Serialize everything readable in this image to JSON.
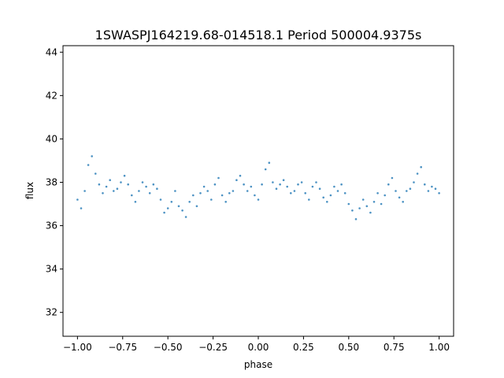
{
  "chart_data": {
    "type": "scatter",
    "title": "1SWASPJ164219.68-014518.1 Period 500004.9375s",
    "xlabel": "phase",
    "ylabel": "flux",
    "xlim": [
      -1.08,
      1.08
    ],
    "ylim": [
      30.9,
      44.3
    ],
    "xticks": [
      {
        "value": -1.0,
        "label": "−1.00"
      },
      {
        "value": -0.75,
        "label": "−0.75"
      },
      {
        "value": -0.5,
        "label": "−0.50"
      },
      {
        "value": -0.25,
        "label": "−0.25"
      },
      {
        "value": 0.0,
        "label": "0.00"
      },
      {
        "value": 0.25,
        "label": "0.25"
      },
      {
        "value": 0.5,
        "label": "0.50"
      },
      {
        "value": 0.75,
        "label": "0.75"
      },
      {
        "value": 1.0,
        "label": "1.00"
      }
    ],
    "yticks": [
      {
        "value": 32,
        "label": "32"
      },
      {
        "value": 34,
        "label": "34"
      },
      {
        "value": 36,
        "label": "36"
      },
      {
        "value": 38,
        "label": "38"
      },
      {
        "value": 40,
        "label": "40"
      },
      {
        "value": 42,
        "label": "42"
      },
      {
        "value": 44,
        "label": "44"
      }
    ],
    "grid": false,
    "marker_color": "#1f77b4",
    "series": [
      {
        "x": [
          -1.0,
          -0.98,
          -0.96,
          -0.94,
          -0.92,
          -0.9,
          -0.88,
          -0.86,
          -0.84,
          -0.82,
          -0.8,
          -0.78,
          -0.76,
          -0.74,
          -0.72,
          -0.7,
          -0.68,
          -0.66,
          -0.64,
          -0.62,
          -0.6,
          -0.58,
          -0.56,
          -0.54,
          -0.52,
          -0.5,
          -0.48,
          -0.46,
          -0.44,
          -0.42,
          -0.4,
          -0.38,
          -0.36,
          -0.34,
          -0.32,
          -0.3,
          -0.28,
          -0.26,
          -0.24,
          -0.22,
          -0.2,
          -0.18,
          -0.16,
          -0.14,
          -0.12,
          -0.1,
          -0.08,
          -0.06,
          -0.04,
          -0.02,
          0.0,
          0.02,
          0.04,
          0.06,
          0.08,
          0.1,
          0.12,
          0.14,
          0.16,
          0.18,
          0.2,
          0.22,
          0.24,
          0.26,
          0.28,
          0.3,
          0.32,
          0.34,
          0.36,
          0.38,
          0.4,
          0.42,
          0.44,
          0.46,
          0.48,
          0.5,
          0.52,
          0.54,
          0.56,
          0.58,
          0.6,
          0.62,
          0.64,
          0.66,
          0.68,
          0.7,
          0.72,
          0.74,
          0.76,
          0.78,
          0.8,
          0.82,
          0.84,
          0.86,
          0.88,
          0.9,
          0.92,
          0.94,
          0.96,
          0.98,
          1.0
        ],
        "y": [
          37.2,
          36.8,
          37.6,
          38.8,
          39.2,
          38.4,
          37.9,
          37.5,
          37.8,
          38.1,
          37.6,
          37.7,
          38.0,
          38.3,
          37.9,
          37.4,
          37.1,
          37.6,
          38.0,
          37.8,
          37.5,
          37.9,
          37.7,
          37.2,
          36.6,
          36.8,
          37.1,
          37.6,
          36.9,
          36.7,
          36.4,
          37.1,
          37.4,
          36.9,
          37.5,
          37.8,
          37.6,
          37.2,
          37.9,
          38.2,
          37.4,
          37.1,
          37.5,
          37.6,
          38.1,
          38.3,
          37.9,
          37.6,
          37.8,
          37.4,
          37.2,
          37.9,
          38.6,
          38.9,
          38.0,
          37.7,
          37.9,
          38.1,
          37.8,
          37.5,
          37.6,
          37.9,
          38.0,
          37.5,
          37.2,
          37.8,
          38.0,
          37.7,
          37.3,
          37.1,
          37.4,
          37.8,
          37.6,
          37.9,
          37.5,
          37.0,
          36.7,
          36.3,
          36.8,
          37.2,
          36.9,
          36.6,
          37.1,
          37.5,
          37.0,
          37.4,
          37.9,
          38.2,
          37.6,
          37.3,
          37.1,
          37.6,
          37.7,
          38.0,
          38.4,
          38.7,
          37.9,
          37.6,
          37.8,
          37.7,
          37.5
        ]
      }
    ]
  }
}
